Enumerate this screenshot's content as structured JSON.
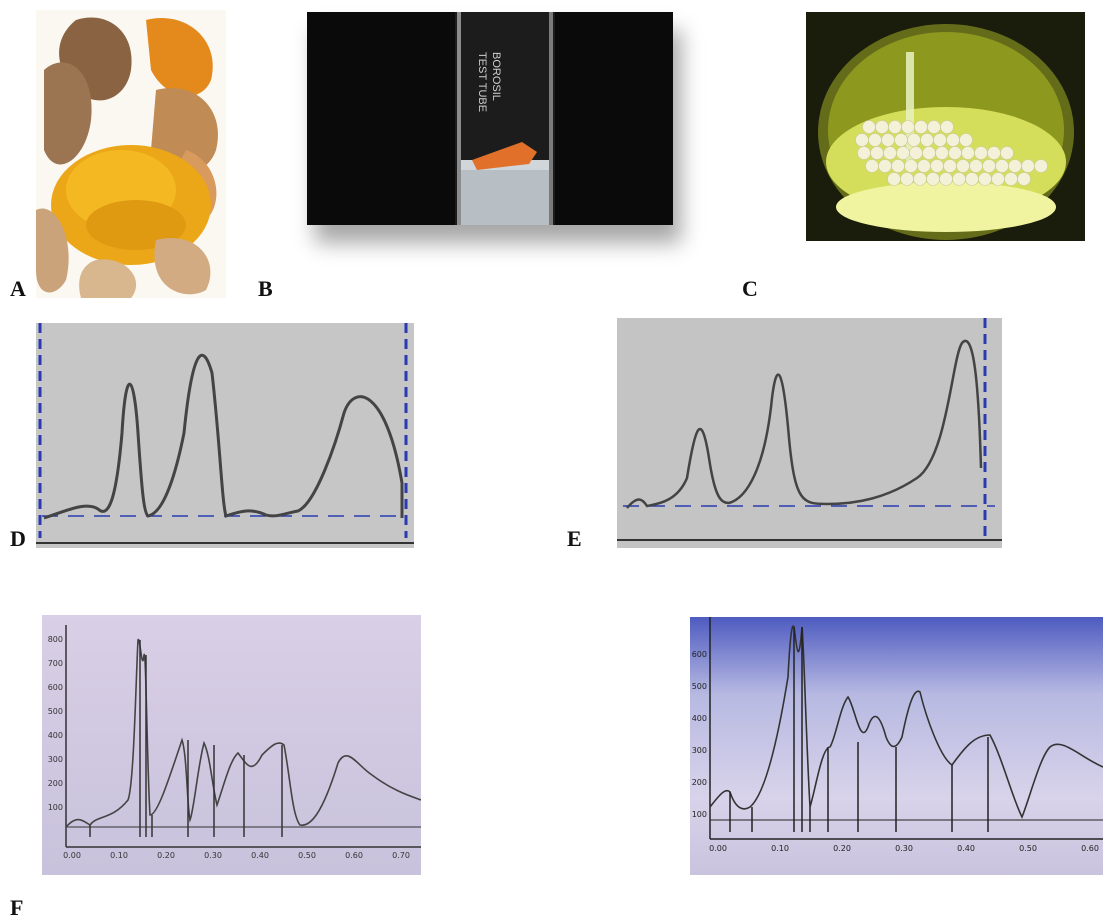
{
  "figure": {
    "labels": {
      "a": "A",
      "b": "B",
      "c": "C",
      "d": "D",
      "e": "E",
      "f": "F"
    },
    "panel_b_tube_text": [
      "BOROSIL",
      "TEST TUBE"
    ],
    "panel_f_left": {
      "y_ticks": [
        "800",
        "700",
        "600",
        "500",
        "400",
        "300",
        "200",
        "100"
      ],
      "x_ticks": [
        "0.00",
        "0.10",
        "0.20",
        "0.30",
        "0.40",
        "0.50",
        "0.60",
        "0.70"
      ]
    },
    "panel_f_right": {
      "y_ticks": [
        "600",
        "500",
        "400",
        "300",
        "200",
        "100"
      ],
      "x_ticks": [
        "0.00",
        "0.10",
        "0.20",
        "0.30",
        "0.40",
        "0.50",
        "0.60"
      ]
    }
  },
  "colors": {
    "plot_gray": "#c4c4c4",
    "baseline_blue": "#2a3bb0",
    "trace": "#444444",
    "turmeric_orange": "#e8a21a",
    "lavender_bg": "#cfc7e2"
  }
}
